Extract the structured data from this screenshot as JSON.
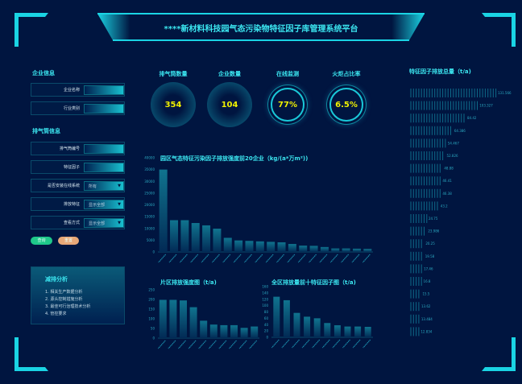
{
  "header": {
    "title": "****新材料科技园气态污染物特征因子库管理系统平台"
  },
  "sidebar": {
    "company_section": "企业信息",
    "company_fields": [
      {
        "label": "企业名称",
        "value": ""
      },
      {
        "label": "行业类别",
        "value": ""
      }
    ],
    "stack_section": "排气筒信息",
    "stack_fields": [
      {
        "label": "排气筒编号",
        "value": ""
      },
      {
        "label": "特征因子",
        "value": ""
      },
      {
        "label": "是否安装在线系统",
        "value": "所有",
        "select": true
      },
      {
        "label": "排放特征",
        "value": "显示全部",
        "select": true
      },
      {
        "label": "查看方式",
        "value": "显示全部",
        "select": true
      }
    ],
    "query_label": "查询",
    "reset_label": "重置",
    "query_color": "#1fc88a",
    "reset_color": "#e8a878"
  },
  "reduction": {
    "title": "减排分析",
    "items": [
      "1.  相关生产数据分析",
      "2.  源头控制措施分析",
      "3.  最佳可行治理技术分析",
      "4.  管控要求"
    ]
  },
  "kpis": [
    {
      "label": "排气筒数量",
      "value": "354",
      "style": "fill"
    },
    {
      "label": "企业数量",
      "value": "104",
      "style": "fill"
    },
    {
      "label": "在线监测",
      "value": "77%",
      "style": "ring"
    },
    {
      "label": "火炬占比率",
      "value": "6.5%",
      "style": "ring"
    }
  ],
  "colors": {
    "background": "#001540",
    "accent": "#2ee4f0",
    "kpi_value": "#f0f000",
    "bar": "#0e6a88"
  },
  "chart_data": [
    {
      "type": "bar",
      "title": "园区气态特征污染因子排放强度前20企业（kg/(a*万m²))",
      "ylim": [
        0,
        40000
      ],
      "yticks": [
        "0",
        "5000",
        "10000",
        "15000",
        "20000",
        "25000",
        "30000",
        "35000",
        "40000"
      ],
      "values": [
        35000,
        13500,
        13500,
        12300,
        11300,
        9900,
        6000,
        4900,
        4700,
        4500,
        4300,
        4100,
        3400,
        2700,
        2600,
        2100,
        1500,
        1500,
        1400,
        1300
      ]
    },
    {
      "type": "bar",
      "title": "片区排放强度图（t/a)",
      "ylim": [
        0,
        250
      ],
      "yticks": [
        "0",
        "50",
        "100",
        "150",
        "200",
        "250"
      ],
      "values": [
        198,
        198,
        195,
        160,
        90,
        70,
        67,
        67,
        53,
        60
      ]
    },
    {
      "type": "bar",
      "title": "全区排放量前十特征因子图（t/a)",
      "ylim": [
        0,
        160
      ],
      "yticks": [
        "0",
        "20",
        "40",
        "60",
        "80",
        "100",
        "120",
        "140",
        "160"
      ],
      "values": [
        128,
        117,
        77,
        65,
        60,
        45,
        38,
        34,
        34,
        33
      ]
    },
    {
      "type": "bar",
      "orientation": "horizontal",
      "title": "特征因子排放总量（t/a)",
      "values": [
        131.566,
        103.327,
        84.42,
        64.386,
        54.467,
        52.826,
        48.88,
        46.41,
        46.38,
        43.2,
        24.75,
        23.986,
        20.25,
        19.58,
        17.46,
        16.8,
        15.5,
        13.62,
        13.484,
        12.834
      ]
    }
  ]
}
